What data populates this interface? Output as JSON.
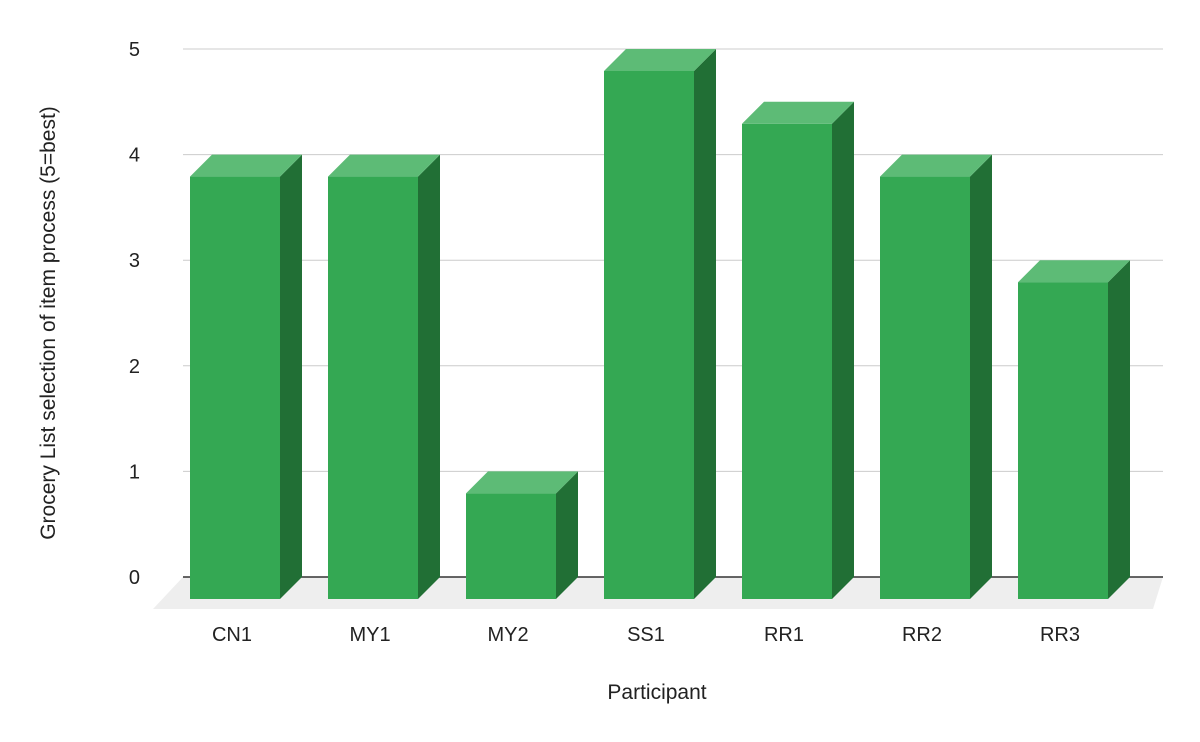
{
  "chart_data": {
    "type": "bar",
    "style": "3d",
    "xlabel": "Participant",
    "ylabel": "Grocery List selection of item process (5=best)",
    "categories": [
      "CN1",
      "MY1",
      "MY2",
      "SS1",
      "RR1",
      "RR2",
      "RR3"
    ],
    "values": [
      4,
      4,
      1,
      5,
      4.5,
      4,
      3
    ],
    "ylim": [
      0,
      5
    ],
    "yticks": [
      "0",
      "1",
      "2",
      "3",
      "4",
      "5"
    ],
    "grid": true,
    "legend": "none",
    "colors": {
      "bar_front": "#34a853",
      "bar_top": "#5dbb76",
      "bar_side": "#216f35",
      "floor": "#eeeeee",
      "gridline": "#cccccc",
      "axis": "#333333"
    }
  }
}
